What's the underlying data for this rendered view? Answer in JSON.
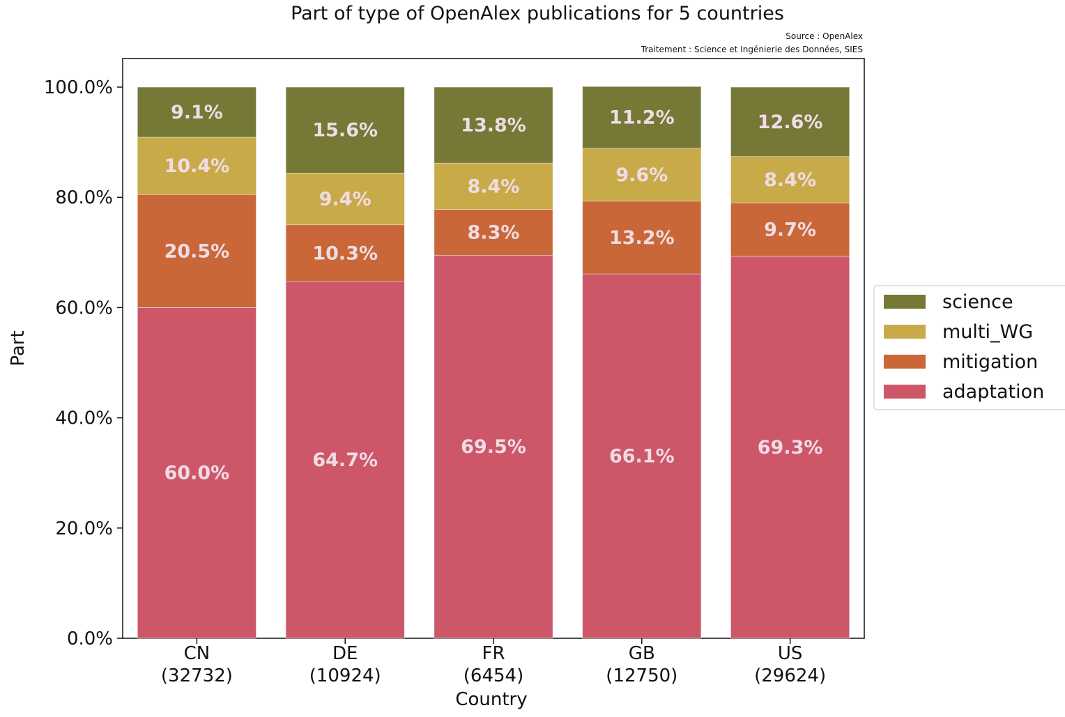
{
  "chart_data": {
    "type": "bar",
    "stacked": true,
    "title": "Part of type of OpenAlex publications for 5 countries",
    "source_note": "Source : OpenAlex",
    "processing_note": "Traitement : Science et Ingénierie des Données, SIES",
    "xlabel": "Country",
    "ylabel": "Part",
    "ylim": [
      0,
      100
    ],
    "yticks": [
      "0.0%",
      "20.0%",
      "40.0%",
      "60.0%",
      "80.0%",
      "100.0%"
    ],
    "ytick_values": [
      0,
      20,
      40,
      60,
      80,
      100
    ],
    "categories": [
      "CN",
      "DE",
      "FR",
      "GB",
      "US"
    ],
    "category_counts": [
      "(32732)",
      "(10924)",
      "(6454)",
      "(12750)",
      "(29624)"
    ],
    "series": [
      {
        "name": "adaptation",
        "color": "#cd5769",
        "values": [
          60.0,
          64.7,
          69.5,
          66.1,
          69.3
        ],
        "labels": [
          "60.0%",
          "64.7%",
          "69.5%",
          "66.1%",
          "69.3%"
        ]
      },
      {
        "name": "mitigation",
        "color": "#c96739",
        "values": [
          20.5,
          10.3,
          8.3,
          13.2,
          9.7
        ],
        "labels": [
          "20.5%",
          "10.3%",
          "8.3%",
          "13.2%",
          "9.7%"
        ]
      },
      {
        "name": "multi_WG",
        "color": "#c9aa49",
        "values": [
          10.4,
          9.4,
          8.4,
          9.6,
          8.4
        ],
        "labels": [
          "10.4%",
          "9.4%",
          "8.4%",
          "9.6%",
          "8.4%"
        ]
      },
      {
        "name": "science",
        "color": "#767836",
        "values": [
          9.1,
          15.6,
          13.8,
          11.2,
          12.6
        ],
        "labels": [
          "9.1%",
          "15.6%",
          "13.8%",
          "11.2%",
          "12.6%"
        ]
      }
    ],
    "legend_order": [
      "science",
      "multi_WG",
      "mitigation",
      "adaptation"
    ],
    "legend_position": "right",
    "grid": false,
    "label_color": "#f0dce4"
  }
}
